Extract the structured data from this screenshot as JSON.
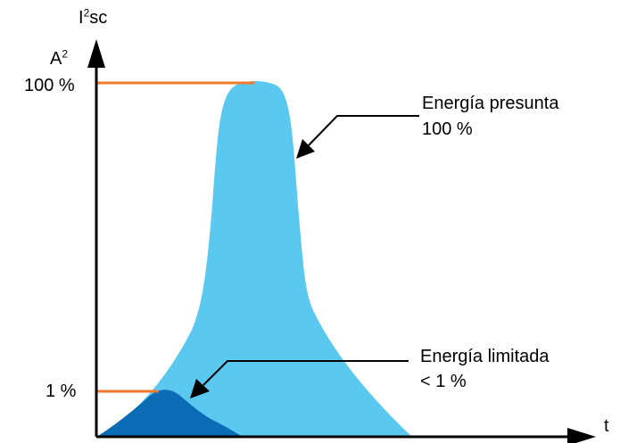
{
  "axes": {
    "y_label_main": "I",
    "y_label_sup": "2",
    "y_label_rest": "sc",
    "y_unit_main": "A",
    "y_unit_sup": "2",
    "x_label": "t",
    "tick_high": "100 %",
    "tick_low": "1 %"
  },
  "annotations": {
    "prospective_line1": "Energía presunta",
    "prospective_line2": "100 %",
    "limited_line1": "Energía limitada",
    "limited_line2": "< 1 %"
  },
  "colors": {
    "prospective_fill": "#5BC8F0",
    "limited_fill": "#0B6BB5",
    "marker_line": "#F07A2A",
    "axis": "#000000"
  }
}
